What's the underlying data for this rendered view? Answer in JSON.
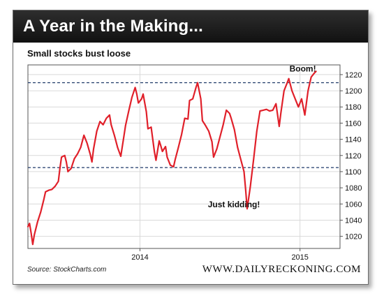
{
  "header": {
    "title": "A Year in the Making..."
  },
  "footer": {
    "source": "Source: StockCharts.com",
    "brand": "WWW.DAILYRECKONING.COM"
  },
  "colors": {
    "line": "#e0202a",
    "grid": "#d9d9d9",
    "dashed": "#1f3a68",
    "header_bg": "#1a1a1a"
  },
  "chart_data": {
    "type": "line",
    "title": "Small stocks bust loose",
    "xlabel": "",
    "ylabel": "",
    "ylim": [
      1005,
      1232
    ],
    "xlim": [
      2013.3,
      2015.25
    ],
    "yticks": [
      1020,
      1040,
      1060,
      1080,
      1100,
      1120,
      1140,
      1160,
      1180,
      1200,
      1220
    ],
    "xticks": [
      {
        "value": 2014.0,
        "label": "2014"
      },
      {
        "value": 2015.0,
        "label": "2015"
      }
    ],
    "reference_lines": [
      1210,
      1105
    ],
    "grid": true,
    "annotations": [
      {
        "text": "Boom!",
        "x": 2015.1,
        "y": 1224
      },
      {
        "text": "Just kidding!",
        "x": 2014.75,
        "y": 1056
      }
    ],
    "series": [
      {
        "name": "",
        "points": [
          [
            2013.3,
            1032
          ],
          [
            2013.31,
            1036
          ],
          [
            2013.32,
            1024
          ],
          [
            2013.33,
            1010
          ],
          [
            2013.34,
            1022
          ],
          [
            2013.36,
            1038
          ],
          [
            2013.38,
            1050
          ],
          [
            2013.4,
            1066
          ],
          [
            2013.41,
            1075
          ],
          [
            2013.43,
            1077
          ],
          [
            2013.45,
            1078
          ],
          [
            2013.47,
            1082
          ],
          [
            2013.49,
            1088
          ],
          [
            2013.5,
            1104
          ],
          [
            2013.51,
            1118
          ],
          [
            2013.53,
            1120
          ],
          [
            2013.54,
            1112
          ],
          [
            2013.55,
            1100
          ],
          [
            2013.57,
            1104
          ],
          [
            2013.59,
            1116
          ],
          [
            2013.61,
            1122
          ],
          [
            2013.63,
            1130
          ],
          [
            2013.65,
            1145
          ],
          [
            2013.67,
            1135
          ],
          [
            2013.69,
            1121
          ],
          [
            2013.7,
            1112
          ],
          [
            2013.71,
            1128
          ],
          [
            2013.73,
            1150
          ],
          [
            2013.75,
            1162
          ],
          [
            2013.77,
            1158
          ],
          [
            2013.79,
            1166
          ],
          [
            2013.81,
            1170
          ],
          [
            2013.82,
            1158
          ],
          [
            2013.84,
            1145
          ],
          [
            2013.86,
            1130
          ],
          [
            2013.88,
            1119
          ],
          [
            2013.9,
            1144
          ],
          [
            2013.91,
            1157
          ],
          [
            2013.93,
            1175
          ],
          [
            2013.95,
            1192
          ],
          [
            2013.97,
            1204
          ],
          [
            2013.98,
            1196
          ],
          [
            2013.99,
            1185
          ],
          [
            2014.01,
            1190
          ],
          [
            2014.02,
            1196
          ],
          [
            2014.04,
            1174
          ],
          [
            2014.05,
            1153
          ],
          [
            2014.07,
            1155
          ],
          [
            2014.09,
            1125
          ],
          [
            2014.1,
            1114
          ],
          [
            2014.12,
            1138
          ],
          [
            2014.13,
            1132
          ],
          [
            2014.14,
            1125
          ],
          [
            2014.16,
            1131
          ],
          [
            2014.17,
            1118
          ],
          [
            2014.19,
            1108
          ],
          [
            2014.21,
            1106
          ],
          [
            2014.22,
            1115
          ],
          [
            2014.24,
            1130
          ],
          [
            2014.26,
            1146
          ],
          [
            2014.28,
            1166
          ],
          [
            2014.3,
            1165
          ],
          [
            2014.31,
            1188
          ],
          [
            2014.33,
            1190
          ],
          [
            2014.35,
            1204
          ],
          [
            2014.36,
            1210
          ],
          [
            2014.38,
            1190
          ],
          [
            2014.39,
            1163
          ],
          [
            2014.41,
            1157
          ],
          [
            2014.43,
            1150
          ],
          [
            2014.45,
            1137
          ],
          [
            2014.46,
            1118
          ],
          [
            2014.48,
            1128
          ],
          [
            2014.5,
            1143
          ],
          [
            2014.52,
            1158
          ],
          [
            2014.54,
            1176
          ],
          [
            2014.56,
            1172
          ],
          [
            2014.57,
            1166
          ],
          [
            2014.59,
            1152
          ],
          [
            2014.61,
            1130
          ],
          [
            2014.63,
            1115
          ],
          [
            2014.65,
            1100
          ],
          [
            2014.66,
            1078
          ],
          [
            2014.67,
            1054
          ],
          [
            2014.69,
            1082
          ],
          [
            2014.71,
            1115
          ],
          [
            2014.73,
            1150
          ],
          [
            2014.75,
            1175
          ],
          [
            2014.77,
            1176
          ],
          [
            2014.79,
            1177
          ],
          [
            2014.81,
            1175
          ],
          [
            2014.83,
            1176
          ],
          [
            2014.85,
            1184
          ],
          [
            2014.87,
            1156
          ],
          [
            2014.88,
            1172
          ],
          [
            2014.9,
            1200
          ],
          [
            2014.92,
            1210
          ],
          [
            2014.93,
            1215
          ],
          [
            2014.95,
            1200
          ],
          [
            2014.97,
            1190
          ],
          [
            2014.99,
            1180
          ],
          [
            2015.01,
            1190
          ],
          [
            2015.03,
            1170
          ],
          [
            2015.05,
            1200
          ],
          [
            2015.07,
            1217
          ],
          [
            2015.09,
            1222
          ],
          [
            2015.1,
            1224
          ]
        ]
      }
    ]
  }
}
